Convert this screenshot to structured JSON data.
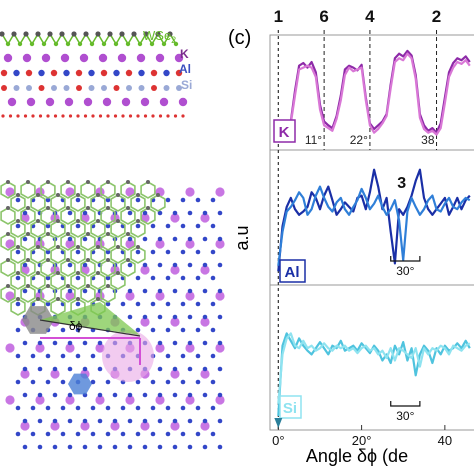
{
  "structure_panel": {
    "layer_labels": [
      {
        "text": "WSe",
        "sub": "2",
        "color": "#66bb2b"
      },
      {
        "text": "K",
        "sub": "",
        "color": "#7b2d8e"
      },
      {
        "text": "Al",
        "sub": "",
        "color": "#3a4fc0"
      },
      {
        "text": "Si",
        "sub": "",
        "color": "#9aa9d6"
      }
    ],
    "angle_label": "δϕ"
  },
  "panel_c_label": "(c)",
  "colors": {
    "k_dark": "#8e2aa8",
    "k_light": "#d977d6",
    "al_dark": "#1a2fa6",
    "al_light": "#2f7fd8",
    "si_dark": "#4fc3de",
    "si_light": "#8fe3f0",
    "wse2": "#66bb2b",
    "k_atom": "#b04fd0",
    "al_atom": "#3347c8",
    "si_atom": "#9aa9d6"
  },
  "chart_data": {
    "type": "line",
    "xlabel": "Angle δϕ (de",
    "ylabel": "a.u",
    "xlim": [
      -2,
      47
    ],
    "x_ticks": [
      0,
      20,
      40
    ],
    "x_tick_labels": [
      "0°",
      "20°",
      "40"
    ],
    "top_markers": [
      {
        "label": "1",
        "x": 0
      },
      {
        "label": "6",
        "x": 11
      },
      {
        "label": "4",
        "x": 22
      },
      {
        "label": "2",
        "x": 38
      }
    ],
    "panels": [
      {
        "label": "K",
        "angle_labels": [
          {
            "text": "11°",
            "x": 11
          },
          {
            "text": "22°",
            "x": 22
          },
          {
            "text": "38",
            "x": 38
          }
        ],
        "dashed_x": [
          11,
          22,
          38
        ],
        "series": [
          {
            "x": [
              0,
              1,
              2,
              3,
              4,
              5,
              6,
              7,
              8,
              9,
              10,
              11,
              12,
              13,
              14,
              15,
              16,
              17,
              18,
              19,
              20,
              21,
              22,
              23,
              24,
              25,
              26,
              27,
              28,
              29,
              30,
              31,
              32,
              33,
              34,
              35,
              36,
              37,
              38,
              39,
              40,
              41,
              42,
              43,
              44,
              45,
              46
            ],
            "values": [
              0.18,
              0.2,
              0.15,
              0.22,
              0.55,
              0.82,
              0.85,
              0.8,
              0.86,
              0.75,
              0.4,
              0.22,
              0.18,
              0.15,
              0.28,
              0.5,
              0.78,
              0.82,
              0.8,
              0.77,
              0.83,
              0.48,
              0.2,
              0.14,
              0.18,
              0.22,
              0.3,
              0.62,
              0.9,
              0.95,
              0.92,
              0.98,
              0.93,
              0.72,
              0.3,
              0.18,
              0.12,
              0.15,
              0.1,
              0.2,
              0.48,
              0.75,
              0.85,
              0.9,
              0.88,
              0.92,
              0.86
            ]
          },
          {
            "x": [
              0,
              1,
              2,
              3,
              4,
              5,
              6,
              7,
              8,
              9,
              10,
              11,
              12,
              13,
              14,
              15,
              16,
              17,
              18,
              19,
              20,
              21,
              22,
              23,
              24,
              25,
              26,
              27,
              28,
              29,
              30,
              31,
              32,
              33,
              34,
              35,
              36,
              37,
              38,
              39,
              40,
              41,
              42,
              43,
              44,
              45,
              46
            ],
            "values": [
              0.12,
              0.18,
              0.1,
              0.2,
              0.5,
              0.78,
              0.8,
              0.82,
              0.8,
              0.7,
              0.35,
              0.18,
              0.15,
              0.12,
              0.25,
              0.45,
              0.72,
              0.8,
              0.76,
              0.78,
              0.8,
              0.45,
              0.18,
              0.1,
              0.14,
              0.2,
              0.28,
              0.58,
              0.86,
              0.9,
              0.88,
              0.95,
              0.9,
              0.68,
              0.26,
              0.14,
              0.1,
              0.12,
              0.08,
              0.15,
              0.42,
              0.7,
              0.8,
              0.86,
              0.84,
              0.88,
              0.82
            ]
          }
        ]
      },
      {
        "label": "Al",
        "marker": {
          "label": "3",
          "x": 30
        },
        "bracket": {
          "text": "30°",
          "x1": 27,
          "x2": 34
        },
        "series": [
          {
            "x": [
              0,
              1,
              2,
              3,
              4,
              5,
              6,
              7,
              8,
              9,
              10,
              11,
              12,
              13,
              14,
              15,
              16,
              17,
              18,
              19,
              20,
              21,
              22,
              23,
              24,
              25,
              26,
              27,
              28,
              29,
              30,
              31,
              32,
              33,
              34,
              35,
              36,
              37,
              38,
              39,
              40,
              41,
              42,
              43,
              44,
              45,
              46
            ],
            "values": [
              0.05,
              0.45,
              0.62,
              0.7,
              0.6,
              0.55,
              0.58,
              0.62,
              0.75,
              0.7,
              0.6,
              0.72,
              0.8,
              0.68,
              0.55,
              0.6,
              0.66,
              0.62,
              0.58,
              0.7,
              0.72,
              0.6,
              0.75,
              0.95,
              0.8,
              0.6,
              0.7,
              0.4,
              0.12,
              0.6,
              0.55,
              0.62,
              0.72,
              0.85,
              0.95,
              0.7,
              0.6,
              0.55,
              0.6,
              0.65,
              0.7,
              0.55,
              0.62,
              0.7,
              0.6,
              0.68,
              0.72
            ]
          },
          {
            "x": [
              0,
              1,
              2,
              3,
              4,
              5,
              6,
              7,
              8,
              9,
              10,
              11,
              12,
              13,
              14,
              15,
              16,
              17,
              18,
              19,
              20,
              21,
              22,
              23,
              24,
              25,
              26,
              27,
              28,
              29,
              30,
              31,
              32,
              33,
              34,
              35,
              36,
              37,
              38,
              39,
              40,
              41,
              42,
              43,
              44,
              45,
              46
            ],
            "values": [
              0.1,
              0.4,
              0.58,
              0.62,
              0.68,
              0.75,
              0.7,
              0.55,
              0.6,
              0.72,
              0.8,
              0.7,
              0.62,
              0.58,
              0.66,
              0.7,
              0.6,
              0.55,
              0.62,
              0.68,
              0.78,
              0.7,
              0.6,
              0.65,
              0.72,
              0.62,
              0.55,
              0.6,
              0.68,
              0.5,
              0.15,
              0.58,
              0.7,
              0.62,
              0.55,
              0.6,
              0.68,
              0.72,
              0.6,
              0.58,
              0.65,
              0.7,
              0.62,
              0.6,
              0.66,
              0.7,
              0.68
            ]
          }
        ]
      },
      {
        "label": "Si",
        "bracket": {
          "text": "30°",
          "x1": 27,
          "x2": 34
        },
        "series": [
          {
            "x": [
              0,
              1,
              2,
              3,
              4,
              5,
              6,
              7,
              8,
              9,
              10,
              11,
              12,
              13,
              14,
              15,
              16,
              17,
              18,
              19,
              20,
              21,
              22,
              23,
              24,
              25,
              26,
              27,
              28,
              29,
              30,
              31,
              32,
              33,
              34,
              35,
              36,
              37,
              38,
              39,
              40,
              41,
              42,
              43,
              44,
              45,
              46
            ],
            "values": [
              0.05,
              0.62,
              0.72,
              0.66,
              0.6,
              0.68,
              0.62,
              0.58,
              0.55,
              0.6,
              0.65,
              0.6,
              0.55,
              0.62,
              0.6,
              0.66,
              0.58,
              0.6,
              0.62,
              0.58,
              0.64,
              0.6,
              0.56,
              0.62,
              0.58,
              0.5,
              0.55,
              0.48,
              0.62,
              0.55,
              0.65,
              0.5,
              0.6,
              0.38,
              0.55,
              0.62,
              0.58,
              0.48,
              0.6,
              0.55,
              0.62,
              0.58,
              0.6,
              0.64,
              0.6,
              0.66,
              0.6
            ]
          },
          {
            "x": [
              0,
              1,
              2,
              3,
              4,
              5,
              6,
              7,
              8,
              9,
              10,
              11,
              12,
              13,
              14,
              15,
              16,
              17,
              18,
              19,
              20,
              21,
              22,
              23,
              24,
              25,
              26,
              27,
              28,
              29,
              30,
              31,
              32,
              33,
              34,
              35,
              36,
              37,
              38,
              39,
              40,
              41,
              42,
              43,
              44,
              45,
              46
            ],
            "values": [
              0.15,
              0.55,
              0.68,
              0.72,
              0.62,
              0.6,
              0.66,
              0.6,
              0.62,
              0.58,
              0.6,
              0.64,
              0.6,
              0.58,
              0.62,
              0.6,
              0.62,
              0.58,
              0.6,
              0.56,
              0.6,
              0.62,
              0.58,
              0.6,
              0.55,
              0.58,
              0.52,
              0.6,
              0.5,
              0.6,
              0.58,
              0.55,
              0.52,
              0.6,
              0.45,
              0.6,
              0.55,
              0.6,
              0.58,
              0.62,
              0.6,
              0.55,
              0.62,
              0.6,
              0.58,
              0.62,
              0.64
            ]
          }
        ]
      }
    ]
  }
}
